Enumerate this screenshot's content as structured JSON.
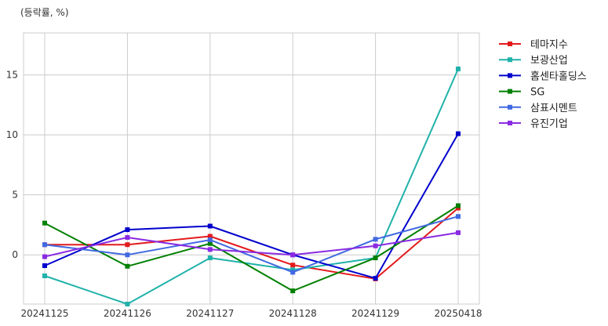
{
  "chart_data": {
    "type": "line",
    "unit_label": "(등락률, %)",
    "categories": [
      "20241125",
      "20241126",
      "20241127",
      "20241128",
      "20241129",
      "20250418"
    ],
    "y_ticks": [
      0,
      5,
      10,
      15
    ],
    "ylim": [
      -4.1,
      18.5
    ],
    "grid": true,
    "legend_position": "right",
    "series": [
      {
        "name": "테마지수",
        "color": "#e31a1c",
        "values": [
          0.85,
          0.85,
          1.55,
          -0.85,
          -2.0,
          3.9
        ]
      },
      {
        "name": "보광산업",
        "color": "#20b2aa",
        "values": [
          -1.75,
          -4.1,
          -0.25,
          -1.25,
          -0.25,
          15.5
        ]
      },
      {
        "name": "홈센타홀딩스",
        "color": "#0000cd",
        "values": [
          -0.9,
          2.1,
          2.4,
          0.0,
          -1.95,
          10.1
        ]
      },
      {
        "name": "SG",
        "color": "#008000",
        "values": [
          2.65,
          -0.95,
          0.95,
          -3.0,
          -0.25,
          4.1
        ]
      },
      {
        "name": "삼표시멘트",
        "color": "#4169e1",
        "values": [
          0.85,
          0.0,
          1.25,
          -1.45,
          1.3,
          3.2
        ]
      },
      {
        "name": "유진기업",
        "color": "#8a2be2",
        "values": [
          -0.15,
          1.45,
          0.45,
          0.0,
          0.75,
          1.85
        ]
      }
    ]
  }
}
